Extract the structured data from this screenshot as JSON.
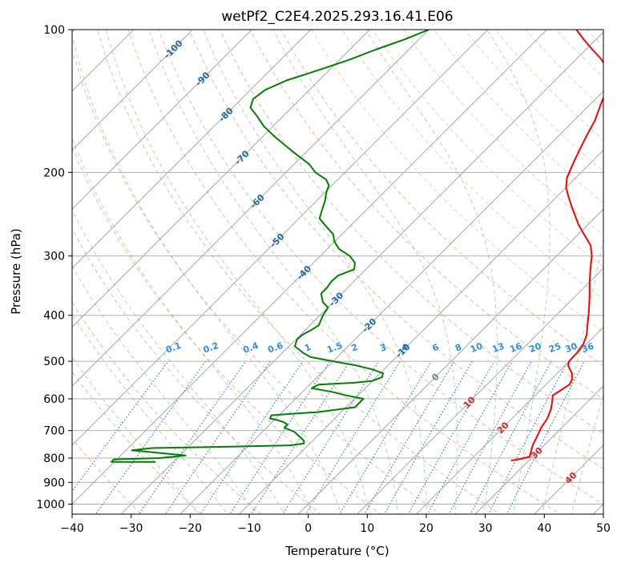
{
  "chart_data": {
    "type": "line",
    "title": "wetPf2_C2E4.2025.293.16.41.E06",
    "xlabel": "Temperature (°C)",
    "ylabel": "Pressure (hPa)",
    "xlim": [
      -40,
      50
    ],
    "ylim": [
      1050,
      100
    ],
    "y_scale": "log",
    "grid": true,
    "x_ticks": [
      "−40",
      "−30",
      "−20",
      "−10",
      "0",
      "10",
      "20",
      "30",
      "40",
      "50"
    ],
    "x_tick_values": [
      -40,
      -30,
      -20,
      -10,
      0,
      10,
      20,
      30,
      40,
      50
    ],
    "y_ticks": [
      "100",
      "200",
      "300",
      "400",
      "500",
      "600",
      "700",
      "800",
      "900",
      "1000"
    ],
    "y_tick_values": [
      100,
      200,
      300,
      400,
      500,
      600,
      700,
      800,
      900,
      1000
    ],
    "skew_reference": {
      "p": 1000,
      "t_bottom": -40
    },
    "series": [
      {
        "role": "temperature",
        "color": "#ff0000",
        "points": [
          [
            27.0,
            810
          ],
          [
            28.0,
            805
          ],
          [
            29.5,
            795
          ],
          [
            29.0,
            780
          ],
          [
            28.0,
            750
          ],
          [
            27.3,
            720
          ],
          [
            26.5,
            690
          ],
          [
            26.0,
            660
          ],
          [
            25.0,
            630
          ],
          [
            23.8,
            605
          ],
          [
            23.0,
            590
          ],
          [
            23.5,
            575
          ],
          [
            24.0,
            560
          ],
          [
            23.5,
            545
          ],
          [
            22.5,
            530
          ],
          [
            21.5,
            520
          ],
          [
            20.5,
            510
          ],
          [
            20.0,
            500
          ],
          [
            19.9,
            480
          ],
          [
            19.5,
            460
          ],
          [
            18.5,
            440
          ],
          [
            17.0,
            420
          ],
          [
            15.5,
            400
          ],
          [
            13.8,
            380
          ],
          [
            12.0,
            360
          ],
          [
            10.0,
            340
          ],
          [
            8.0,
            320
          ],
          [
            6.0,
            300
          ],
          [
            4.0,
            285
          ],
          [
            1.0,
            270
          ],
          [
            -1.5,
            258
          ],
          [
            -4.0,
            245
          ],
          [
            -6.0,
            235
          ],
          [
            -8.0,
            225
          ],
          [
            -10.0,
            215
          ],
          [
            -11.5,
            205
          ],
          [
            -12.5,
            195
          ],
          [
            -13.5,
            185
          ],
          [
            -14.5,
            175
          ],
          [
            -15.5,
            165
          ],
          [
            -16.5,
            155
          ],
          [
            -18.0,
            145
          ],
          [
            -19.5,
            135
          ],
          [
            -21.0,
            128
          ],
          [
            -23.5,
            120
          ],
          [
            -26.0,
            115
          ],
          [
            -29.0,
            110
          ],
          [
            -32.0,
            105
          ],
          [
            -35.0,
            100
          ]
        ]
      },
      {
        "role": "dewpoint",
        "color": "#008000",
        "points": [
          [
            -33.0,
            815
          ],
          [
            -40.5,
            815
          ],
          [
            -40.5,
            805
          ],
          [
            -33.0,
            800
          ],
          [
            -29.0,
            790
          ],
          [
            -39.0,
            770
          ],
          [
            -36.0,
            762
          ],
          [
            -23.0,
            757
          ],
          [
            -13.0,
            752
          ],
          [
            -11.0,
            745
          ],
          [
            -11.5,
            735
          ],
          [
            -13.0,
            720
          ],
          [
            -14.5,
            705
          ],
          [
            -17.0,
            690
          ],
          [
            -17.0,
            680
          ],
          [
            -18.0,
            672
          ],
          [
            -19.5,
            665
          ],
          [
            -21.0,
            660
          ],
          [
            -21.3,
            650
          ],
          [
            -18.0,
            645
          ],
          [
            -14.0,
            640
          ],
          [
            -8.5,
            625
          ],
          [
            -8.5,
            600
          ],
          [
            -12.0,
            590
          ],
          [
            -15.0,
            580
          ],
          [
            -19.0,
            570
          ],
          [
            -18.5,
            560
          ],
          [
            -13.0,
            555
          ],
          [
            -10.0,
            550
          ],
          [
            -9.0,
            540
          ],
          [
            -9.5,
            530
          ],
          [
            -12.0,
            520
          ],
          [
            -15.5,
            510
          ],
          [
            -20.0,
            500
          ],
          [
            -24.5,
            490
          ],
          [
            -26.5,
            480
          ],
          [
            -29.0,
            465
          ],
          [
            -29.8,
            450
          ],
          [
            -29.7,
            440
          ],
          [
            -29.0,
            430
          ],
          [
            -28.5,
            420
          ],
          [
            -29.0,
            410
          ],
          [
            -29.5,
            400
          ],
          [
            -29.8,
            390
          ],
          [
            -30.0,
            385
          ],
          [
            -31.8,
            375
          ],
          [
            -33.5,
            360
          ],
          [
            -33.5,
            350
          ],
          [
            -33.8,
            340
          ],
          [
            -33.7,
            330
          ],
          [
            -32.0,
            320
          ],
          [
            -33.0,
            310
          ],
          [
            -35.0,
            300
          ],
          [
            -38.0,
            290
          ],
          [
            -40.0,
            280
          ],
          [
            -41.5,
            270
          ],
          [
            -44.0,
            260
          ],
          [
            -46.5,
            250
          ],
          [
            -47.5,
            240
          ],
          [
            -48.5,
            230
          ],
          [
            -49.8,
            220
          ],
          [
            -50.5,
            213
          ],
          [
            -52.0,
            207
          ],
          [
            -55.0,
            200
          ],
          [
            -57.5,
            192
          ],
          [
            -60.5,
            185
          ],
          [
            -64.0,
            177
          ],
          [
            -68.0,
            168
          ],
          [
            -71.5,
            160
          ],
          [
            -74.5,
            152
          ],
          [
            -77.0,
            146
          ],
          [
            -78.0,
            140
          ],
          [
            -77.5,
            134
          ],
          [
            -75.5,
            128
          ],
          [
            -72.0,
            122
          ],
          [
            -68.5,
            116
          ],
          [
            -65.5,
            110
          ],
          [
            -62.5,
            105
          ],
          [
            -60.0,
            100
          ]
        ]
      }
    ],
    "mixing_ratio_labels": [
      "0.1",
      "0.2",
      "0.4",
      "0.6",
      "1",
      "1.5",
      "2",
      "3",
      "4",
      "6",
      "8",
      "10",
      "13",
      "16",
      "20",
      "25",
      "30",
      "36"
    ],
    "mixing_ratio_values": [
      0.1,
      0.2,
      0.4,
      0.6,
      1,
      1.5,
      2,
      3,
      4,
      6,
      8,
      10,
      13,
      16,
      20,
      25,
      30,
      36
    ],
    "isotherm_labels": [
      {
        "text": "-100",
        "t": -100,
        "p": 110,
        "color": "#1f6aa5"
      },
      {
        "text": "-90",
        "t": -90,
        "p": 127,
        "color": "#1f6aa5"
      },
      {
        "text": "-80",
        "t": -80,
        "p": 151,
        "color": "#1f6aa5"
      },
      {
        "text": "-70",
        "t": -70,
        "p": 186,
        "color": "#1f6aa5"
      },
      {
        "text": "-60",
        "t": -60,
        "p": 230,
        "color": "#1f6aa5"
      },
      {
        "text": "-50",
        "t": -50,
        "p": 278,
        "color": "#1f6aa5"
      },
      {
        "text": "-40",
        "t": -40,
        "p": 325,
        "color": "#1f6aa5"
      },
      {
        "text": "-30",
        "t": -30,
        "p": 370,
        "color": "#1f6aa5"
      },
      {
        "text": "-20",
        "t": -20,
        "p": 420,
        "color": "#1f6aa5"
      },
      {
        "text": "-10",
        "t": -10,
        "p": 475,
        "color": "#1f6aa5"
      },
      {
        "text": "0",
        "t": 0,
        "p": 540,
        "color": "#808080"
      },
      {
        "text": "10",
        "t": 10,
        "p": 610,
        "color": "#d62728"
      },
      {
        "text": "20",
        "t": 20,
        "p": 690,
        "color": "#d62728"
      },
      {
        "text": "30",
        "t": 30,
        "p": 780,
        "color": "#d62728"
      },
      {
        "text": "40",
        "t": 40,
        "p": 880,
        "color": "#d62728"
      }
    ]
  }
}
